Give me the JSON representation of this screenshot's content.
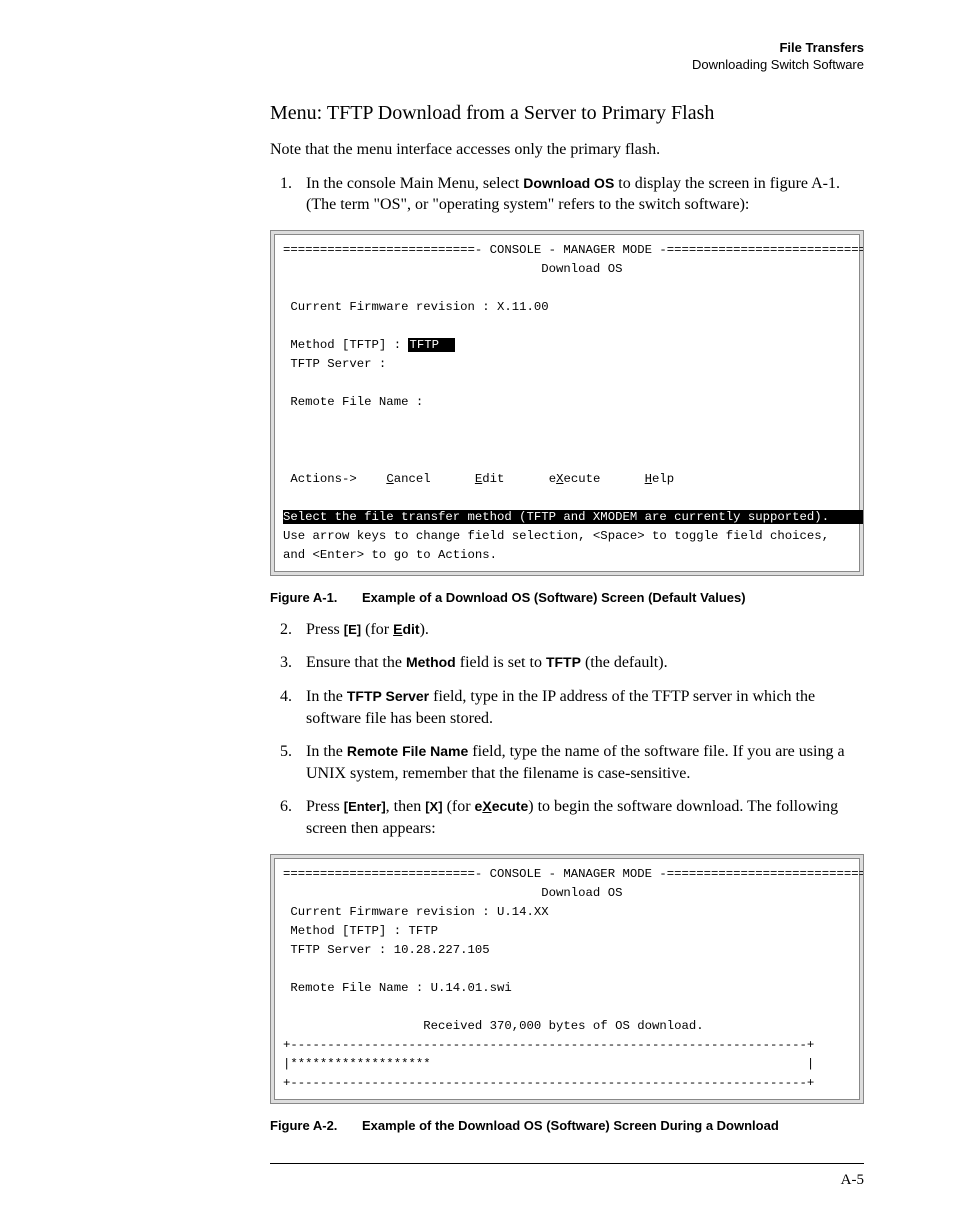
{
  "header": {
    "title": "File Transfers",
    "subtitle": "Downloading Switch Software"
  },
  "section_heading": "Menu: TFTP Download from a Server to Primary Flash",
  "intro": "Note that the menu interface accesses only the primary flash.",
  "step1": {
    "pre": "In the console Main Menu, select ",
    "bold": "Download OS",
    "post": " to display the screen in figure A-1. (The term \"OS\", or \"operating system\" refers to the switch software):"
  },
  "console1": {
    "top_rule": "==========================- CONSOLE - MANAGER MODE -============================",
    "title_line": "                                   Download OS",
    "firmware_line": " Current Firmware revision : X.11.00",
    "method_label": " Method [TFTP] : ",
    "method_value": "TFTP  ",
    "tftp_server_line": " TFTP Server :",
    "remote_file_line": " Remote File Name :",
    "actions_line": " Actions->    Cancel      Edit      eXecute      Help",
    "cancel": "Cancel",
    "edit": "Edit",
    "execute": "eXecute",
    "help": "Help",
    "hint_inv": "Select the file transfer method (TFTP and XMODEM are currently supported).     ",
    "hint2": "Use arrow keys to change field selection, <Space> to toggle field choices,",
    "hint3": "and <Enter> to go to Actions."
  },
  "figure1": {
    "label": "Figure A-1.",
    "caption": "Example of a Download OS (Software) Screen (Default Values)"
  },
  "step2": {
    "pre": "Press ",
    "key": "[E]",
    "mid": " (for ",
    "bold_u": "E",
    "bold_rest": "dit",
    "post": ")."
  },
  "step3": {
    "pre": "Ensure that the  ",
    "bold1": "Method",
    "mid": "  field is set to ",
    "bold2": "TFTP",
    "post": " (the default)."
  },
  "step4": {
    "pre": "In the ",
    "bold": "TFTP Server",
    "post": " field, type in the IP address of the TFTP server in which the software file has been stored."
  },
  "step5": {
    "pre": "In the  ",
    "bold": "Remote File Name",
    "post": "  field, type the name of the software file. If you are using a UNIX system, remember that the filename is case-sensitive."
  },
  "step6": {
    "pre": "Press ",
    "key1": "[Enter]",
    "mid1": ", then ",
    "key2": "[X]",
    "mid2": " (for ",
    "bold_pre": "e",
    "bold_u": "X",
    "bold_post": "ecute",
    "post": ") to begin the software download. The following screen then appears:"
  },
  "console2": {
    "top_rule": "==========================- CONSOLE - MANAGER MODE -============================",
    "title_line": "                                   Download OS",
    "firmware_line": " Current Firmware revision : U.14.XX",
    "method_line": " Method [TFTP] : TFTP",
    "tftp_server_line": " TFTP Server : 10.28.227.105",
    "remote_file_line": " Remote File Name : U.14.01.swi",
    "progress_msg": "                   Received 370,000 bytes of OS download.",
    "bar_top": "+----------------------------------------------------------------------+",
    "bar_mid": "|*******************                                                   |",
    "bar_bot": "+----------------------------------------------------------------------+"
  },
  "figure2": {
    "label": "Figure A-2.",
    "caption": "Example of the Download OS (Software) Screen During a Download"
  },
  "page_number": "A-5"
}
